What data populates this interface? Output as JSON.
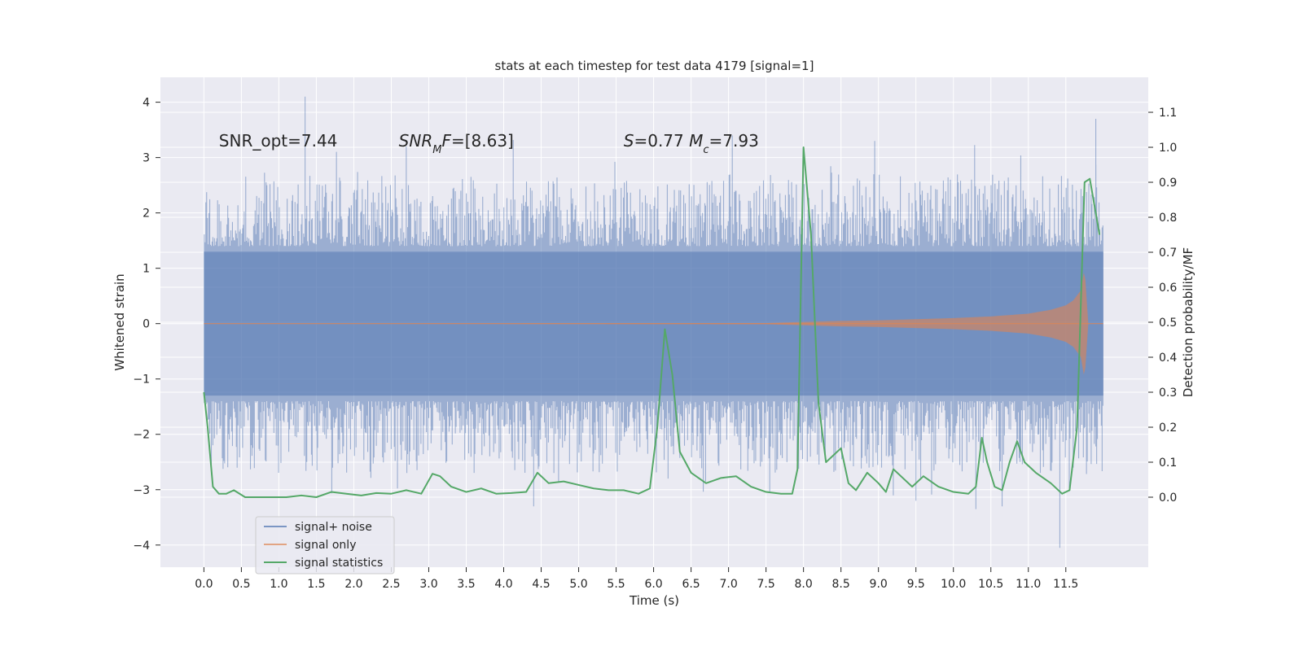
{
  "chart_data": {
    "type": "line",
    "title": "stats at each timestep for test data 4179 [signal=1]",
    "xlabel": "Time (s)",
    "ylabel": "Whitened strain",
    "ylabel_right": "Detection probability/MF",
    "xlim": [
      -0.58,
      12.6
    ],
    "ylim": [
      -4.4,
      4.45
    ],
    "ylim_right": [
      -0.2,
      1.2
    ],
    "x_ticks": [
      "0.0",
      "0.5",
      "1.0",
      "1.5",
      "2.0",
      "2.5",
      "3.0",
      "3.5",
      "4.0",
      "4.5",
      "5.0",
      "5.5",
      "6.0",
      "6.5",
      "7.0",
      "7.5",
      "8.0",
      "8.5",
      "9.0",
      "9.5",
      "10.0",
      "10.5",
      "11.0",
      "11.5"
    ],
    "y_ticks": [
      "−4",
      "−3",
      "−2",
      "−1",
      "0",
      "1",
      "2",
      "3",
      "4"
    ],
    "y_ticks_right": [
      "0.0",
      "0.1",
      "0.2",
      "0.3",
      "0.4",
      "0.5",
      "0.6",
      "0.7",
      "0.8",
      "0.9",
      "1.0",
      "1.1"
    ],
    "grid": true,
    "legend_position": "lower-left",
    "annotations": [
      {
        "id": "snr-opt",
        "text": "SNR_opt=7.44",
        "x": 0.2,
        "y": 3.3
      },
      {
        "id": "snr-mf",
        "text": "SNR_MF=[8.63]",
        "x": 2.6,
        "y": 3.3
      },
      {
        "id": "s-mc",
        "text": "S=0.77   M_c=7.93",
        "x": 5.6,
        "y": 3.3
      }
    ],
    "series": [
      {
        "name": "signal+ noise",
        "color": "#4c72b0",
        "opacity": 0.5,
        "axis": "left",
        "kind": "noise",
        "t_range": [
          0.0,
          12.0
        ],
        "envelope_core": 1.3,
        "typical_peak": 2.0,
        "max_peak": 4.1,
        "min_trough": -4.05
      },
      {
        "name": "signal only",
        "color": "#dd8452",
        "opacity": 0.6,
        "axis": "left",
        "kind": "chirp",
        "envelope": [
          [
            0.0,
            0.0
          ],
          [
            7.5,
            0.01
          ],
          [
            8.0,
            0.03
          ],
          [
            8.5,
            0.05
          ],
          [
            9.0,
            0.06
          ],
          [
            9.5,
            0.08
          ],
          [
            10.0,
            0.1
          ],
          [
            10.5,
            0.13
          ],
          [
            11.0,
            0.18
          ],
          [
            11.3,
            0.25
          ],
          [
            11.5,
            0.33
          ],
          [
            11.6,
            0.42
          ],
          [
            11.7,
            0.6
          ],
          [
            11.75,
            1.0
          ],
          [
            11.8,
            0.0
          ],
          [
            12.0,
            0.0
          ]
        ]
      },
      {
        "name": "signal statistics",
        "color": "#55a868",
        "opacity": 1.0,
        "axis": "right",
        "kind": "line",
        "points": [
          [
            0.0,
            0.3
          ],
          [
            0.05,
            0.2
          ],
          [
            0.12,
            0.03
          ],
          [
            0.2,
            0.01
          ],
          [
            0.3,
            0.01
          ],
          [
            0.4,
            0.02
          ],
          [
            0.55,
            0.0
          ],
          [
            0.7,
            0.0
          ],
          [
            0.9,
            0.0
          ],
          [
            1.1,
            0.0
          ],
          [
            1.3,
            0.005
          ],
          [
            1.5,
            0.0
          ],
          [
            1.7,
            0.015
          ],
          [
            1.9,
            0.01
          ],
          [
            2.1,
            0.005
          ],
          [
            2.3,
            0.012
          ],
          [
            2.5,
            0.01
          ],
          [
            2.7,
            0.02
          ],
          [
            2.9,
            0.01
          ],
          [
            3.05,
            0.067
          ],
          [
            3.15,
            0.06
          ],
          [
            3.3,
            0.03
          ],
          [
            3.5,
            0.015
          ],
          [
            3.7,
            0.025
          ],
          [
            3.9,
            0.01
          ],
          [
            4.1,
            0.012
          ],
          [
            4.3,
            0.015
          ],
          [
            4.45,
            0.07
          ],
          [
            4.6,
            0.04
          ],
          [
            4.8,
            0.045
          ],
          [
            5.0,
            0.035
          ],
          [
            5.2,
            0.025
          ],
          [
            5.4,
            0.02
          ],
          [
            5.6,
            0.02
          ],
          [
            5.8,
            0.01
          ],
          [
            5.95,
            0.025
          ],
          [
            6.05,
            0.2
          ],
          [
            6.15,
            0.48
          ],
          [
            6.25,
            0.35
          ],
          [
            6.35,
            0.13
          ],
          [
            6.5,
            0.07
          ],
          [
            6.7,
            0.04
          ],
          [
            6.9,
            0.055
          ],
          [
            7.1,
            0.06
          ],
          [
            7.3,
            0.03
          ],
          [
            7.5,
            0.015
          ],
          [
            7.7,
            0.01
          ],
          [
            7.85,
            0.01
          ],
          [
            7.92,
            0.08
          ],
          [
            8.0,
            1.0
          ],
          [
            8.1,
            0.75
          ],
          [
            8.2,
            0.27
          ],
          [
            8.3,
            0.1
          ],
          [
            8.4,
            0.12
          ],
          [
            8.5,
            0.14
          ],
          [
            8.6,
            0.04
          ],
          [
            8.7,
            0.02
          ],
          [
            8.85,
            0.07
          ],
          [
            9.0,
            0.04
          ],
          [
            9.1,
            0.015
          ],
          [
            9.2,
            0.08
          ],
          [
            9.3,
            0.06
          ],
          [
            9.45,
            0.03
          ],
          [
            9.6,
            0.06
          ],
          [
            9.8,
            0.03
          ],
          [
            10.0,
            0.015
          ],
          [
            10.2,
            0.01
          ],
          [
            10.3,
            0.03
          ],
          [
            10.38,
            0.17
          ],
          [
            10.45,
            0.1
          ],
          [
            10.55,
            0.03
          ],
          [
            10.65,
            0.02
          ],
          [
            10.75,
            0.1
          ],
          [
            10.85,
            0.16
          ],
          [
            10.95,
            0.1
          ],
          [
            11.1,
            0.07
          ],
          [
            11.3,
            0.04
          ],
          [
            11.45,
            0.01
          ],
          [
            11.55,
            0.02
          ],
          [
            11.65,
            0.2
          ],
          [
            11.75,
            0.9
          ],
          [
            11.82,
            0.91
          ],
          [
            11.95,
            0.75
          ]
        ]
      }
    ]
  }
}
